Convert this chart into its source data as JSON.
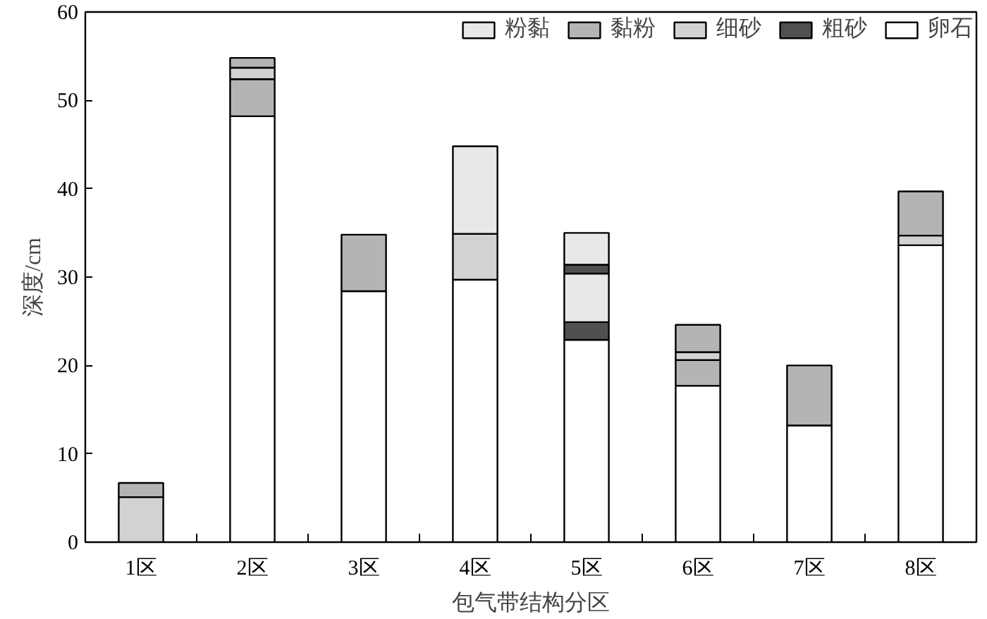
{
  "chart_data": {
    "type": "bar",
    "stacked": true,
    "xlabel": "包气带结构分区",
    "ylabel": "深度/cm",
    "categories": [
      "1区",
      "2区",
      "3区",
      "4区",
      "5区",
      "6区",
      "7区",
      "8区"
    ],
    "ylim": [
      0,
      60
    ],
    "yticks": [
      0,
      10,
      20,
      30,
      40,
      50,
      60
    ],
    "grid": false,
    "legend": "top right",
    "series": [
      {
        "name": "卵石",
        "color": "#ffffff",
        "values": [
          null,
          48.2,
          28.4,
          29.7,
          22.9,
          17.7,
          13.2,
          33.6
        ]
      },
      {
        "color": "#505050",
        "values": [
          null,
          null,
          null,
          null,
          2.0,
          null,
          null,
          null
        ]
      },
      {
        "color": "#b4b4b4",
        "values": [
          null,
          4.2,
          6.4,
          null,
          null,
          2.9,
          6.8,
          null
        ]
      },
      {
        "color": "#e8e8e8",
        "values": [
          null,
          null,
          null,
          null,
          5.5,
          null,
          null,
          null
        ]
      },
      {
        "name": "粗砂",
        "color": "#505050",
        "values": [
          null,
          null,
          null,
          null,
          1.0,
          null,
          null,
          null
        ]
      },
      {
        "name": "细砂",
        "color": "#d2d2d2",
        "values": [
          5.1,
          1.3,
          null,
          5.2,
          null,
          0.9,
          null,
          1.1
        ]
      },
      {
        "name": "黏粉",
        "color": "#b4b4b4",
        "values": [
          1.6,
          1.1,
          null,
          null,
          null,
          3.1,
          null,
          5.0
        ]
      },
      {
        "name": "粉黏",
        "color": "#e8e8e8",
        "values": [
          null,
          null,
          null,
          9.9,
          3.6,
          null,
          null,
          null
        ]
      }
    ]
  }
}
